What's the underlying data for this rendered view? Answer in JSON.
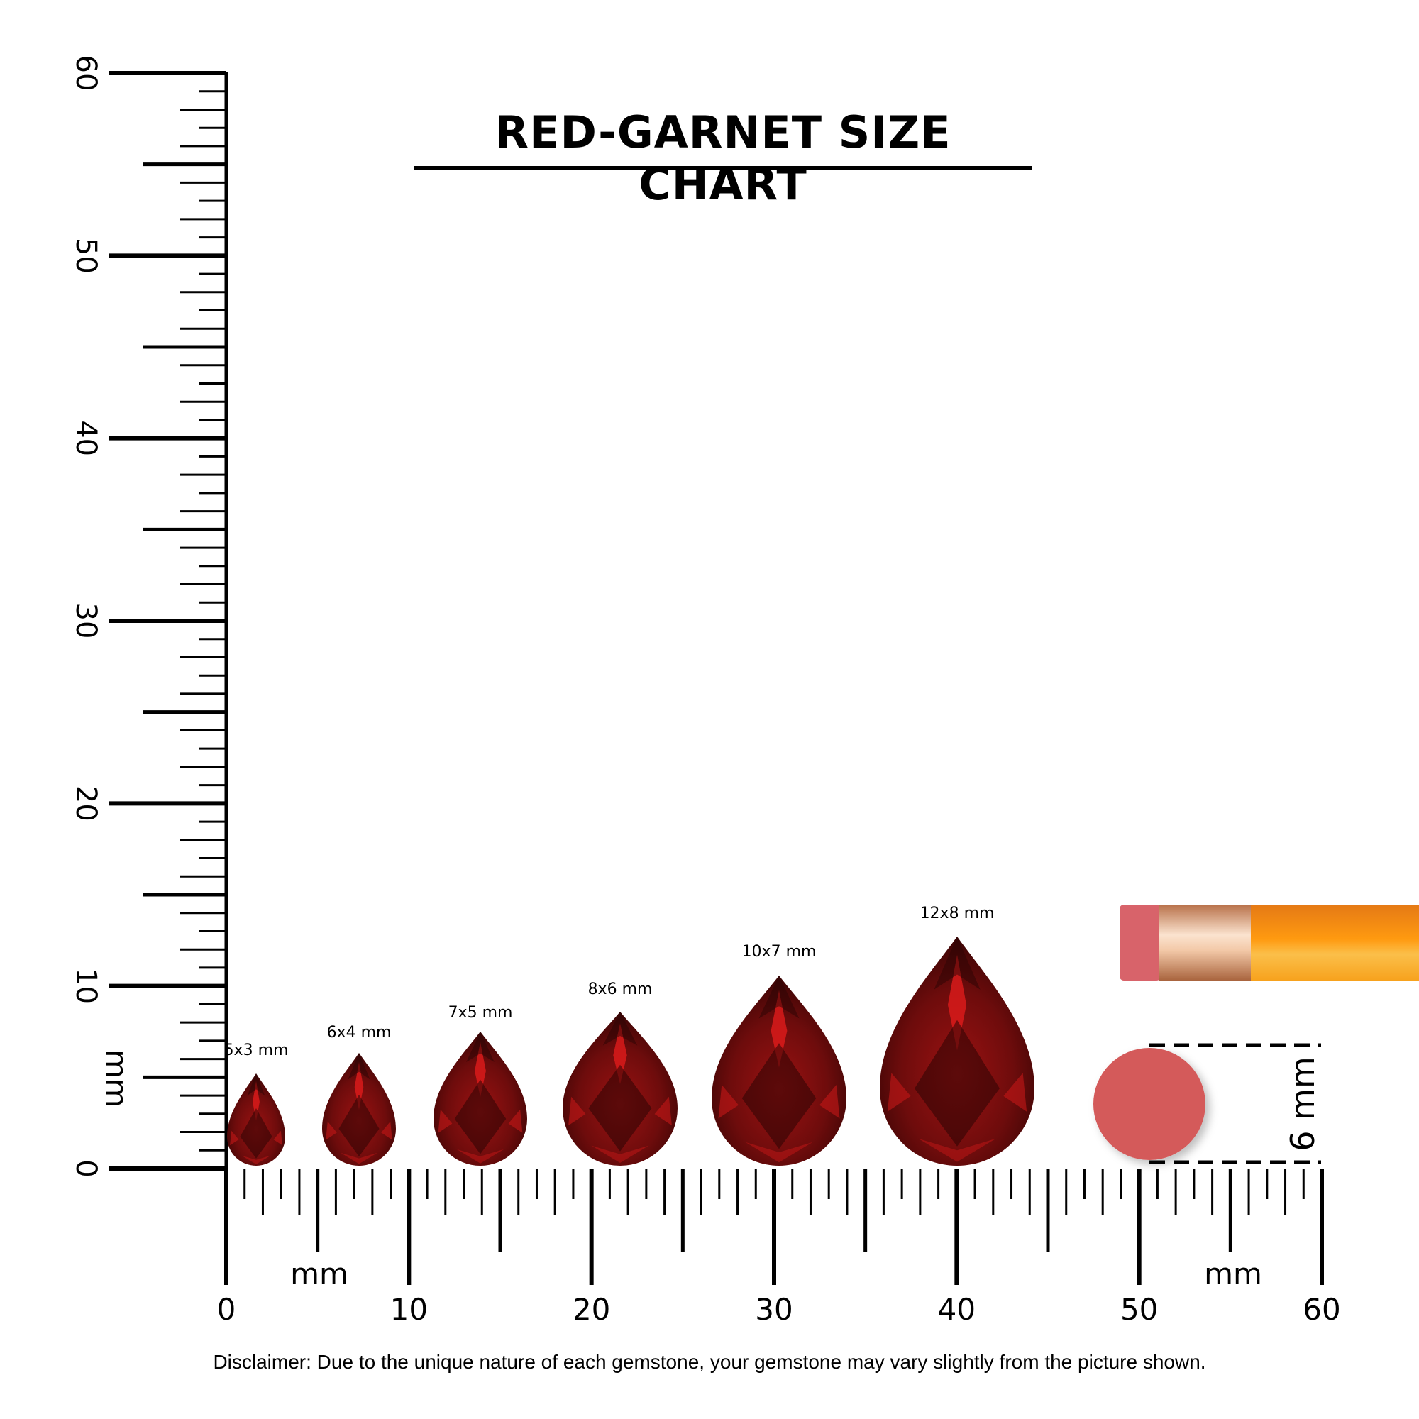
{
  "title": "RED-GARNET SIZE CHART",
  "disclaimer": "Disclaimer: Due to the unique nature of each gemstone, your gemstone may vary slightly from the picture shown.",
  "ruler": {
    "unit_label": "mm",
    "range_mm": [
      0,
      60
    ],
    "major_labels": [
      "0",
      "10",
      "20",
      "30",
      "40",
      "50",
      "60"
    ]
  },
  "gemstones": [
    {
      "label": "5x3 mm",
      "length_mm": 5,
      "width_mm": 3
    },
    {
      "label": "6x4 mm",
      "length_mm": 6,
      "width_mm": 4
    },
    {
      "label": "7x5 mm",
      "length_mm": 7,
      "width_mm": 5
    },
    {
      "label": "8x6 mm",
      "length_mm": 8,
      "width_mm": 6
    },
    {
      "label": "10x7 mm",
      "length_mm": 10,
      "width_mm": 7
    },
    {
      "label": "12x8 mm",
      "length_mm": 12,
      "width_mm": 8
    }
  ],
  "reference": {
    "eraser_label": "6 mm",
    "object": "pencil-eraser"
  },
  "colors": {
    "gem_dark": "#4a0707",
    "gem_mid": "#8a1010",
    "gem_highlight": "#e01b1b",
    "eraser": "#d45a5a",
    "pencil": "#f7941d",
    "ferrule": "#d9a27a"
  }
}
